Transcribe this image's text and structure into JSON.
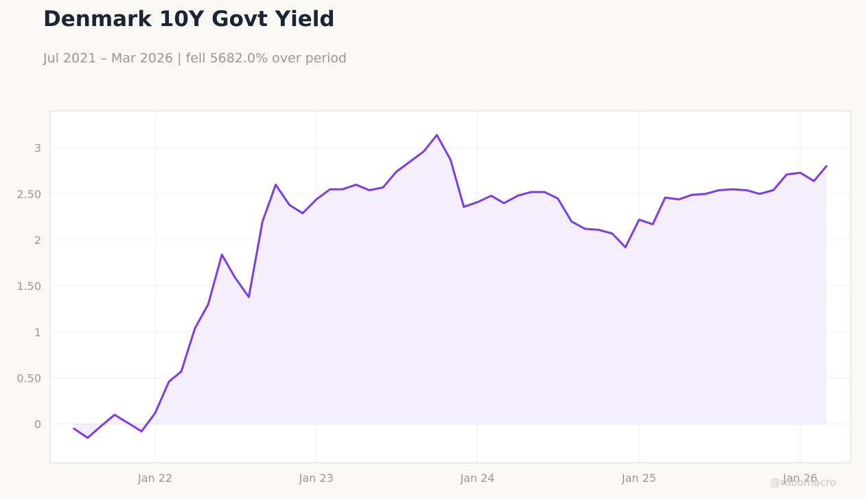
{
  "header": {
    "title": "Denmark 10Y Govt Yield",
    "subtitle": "Jul 2021 – Mar 2026 | fell 5682.0% over period"
  },
  "watermark": "@robomacro",
  "colors": {
    "line": "#7c3aed",
    "fill": "#f2edfc",
    "axis_text": "#9a9794",
    "grid": "#efedf2",
    "frame": "#dcd9d4",
    "background": "#f9f8f5",
    "plot_background": "#ffffff"
  },
  "chart_data": {
    "type": "area",
    "title": "Denmark 10Y Govt Yield",
    "subtitle": "Jul 2021 – Mar 2026 | fell 5682.0% over period",
    "xlabel": "",
    "ylabel": "",
    "xlim": [
      "2021-05-08",
      "2026-04-25"
    ],
    "ylim": [
      -0.42,
      3.4
    ],
    "grid": true,
    "legend": "none",
    "x_ticks": [
      {
        "value": "2022-01-01",
        "label": "Jan 22"
      },
      {
        "value": "2023-01-01",
        "label": "Jan 23"
      },
      {
        "value": "2024-01-01",
        "label": "Jan 24"
      },
      {
        "value": "2025-01-01",
        "label": "Jan 25"
      },
      {
        "value": "2026-01-01",
        "label": "Jan 26"
      }
    ],
    "y_ticks": [
      {
        "value": 0,
        "label": "0"
      },
      {
        "value": 0.5,
        "label": "0.50"
      },
      {
        "value": 1,
        "label": "1"
      },
      {
        "value": 1.5,
        "label": "1.50"
      },
      {
        "value": 2,
        "label": "2"
      },
      {
        "value": 2.5,
        "label": "2.50"
      },
      {
        "value": 3,
        "label": "3"
      }
    ],
    "x": [
      "2021-07-01",
      "2021-08-01",
      "2021-09-01",
      "2021-10-01",
      "2021-11-01",
      "2021-12-01",
      "2022-01-01",
      "2022-02-01",
      "2022-03-01",
      "2022-04-01",
      "2022-05-01",
      "2022-06-01",
      "2022-07-01",
      "2022-08-01",
      "2022-09-01",
      "2022-10-01",
      "2022-11-01",
      "2022-12-01",
      "2023-01-01",
      "2023-02-01",
      "2023-03-01",
      "2023-04-01",
      "2023-05-01",
      "2023-06-01",
      "2023-07-01",
      "2023-08-01",
      "2023-09-01",
      "2023-10-01",
      "2023-11-01",
      "2023-12-01",
      "2024-01-01",
      "2024-02-01",
      "2024-03-01",
      "2024-04-01",
      "2024-05-01",
      "2024-06-01",
      "2024-07-01",
      "2024-08-01",
      "2024-09-01",
      "2024-10-01",
      "2024-11-01",
      "2024-12-01",
      "2025-01-01",
      "2025-02-01",
      "2025-03-01",
      "2025-04-01",
      "2025-05-01",
      "2025-06-01",
      "2025-07-01",
      "2025-08-01",
      "2025-09-01",
      "2025-10-01",
      "2025-11-01",
      "2025-12-01",
      "2026-01-01",
      "2026-02-01",
      "2026-03-01"
    ],
    "series": [
      {
        "values": [
          -0.05,
          -0.15,
          -0.02,
          0.1,
          0.01,
          -0.08,
          0.12,
          0.46,
          0.57,
          1.04,
          1.3,
          1.84,
          1.59,
          1.38,
          2.2,
          2.6,
          2.38,
          2.29,
          2.44,
          2.55,
          2.55,
          2.6,
          2.54,
          2.57,
          2.74,
          2.85,
          2.96,
          3.14,
          2.87,
          2.36,
          2.41,
          2.48,
          2.4,
          2.48,
          2.52,
          2.52,
          2.45,
          2.2,
          2.12,
          2.11,
          2.07,
          1.92,
          2.22,
          2.17,
          2.46,
          2.44,
          2.49,
          2.5,
          2.54,
          2.55,
          2.54,
          2.5,
          2.54,
          2.71,
          2.73,
          2.64,
          2.8
        ]
      }
    ]
  }
}
